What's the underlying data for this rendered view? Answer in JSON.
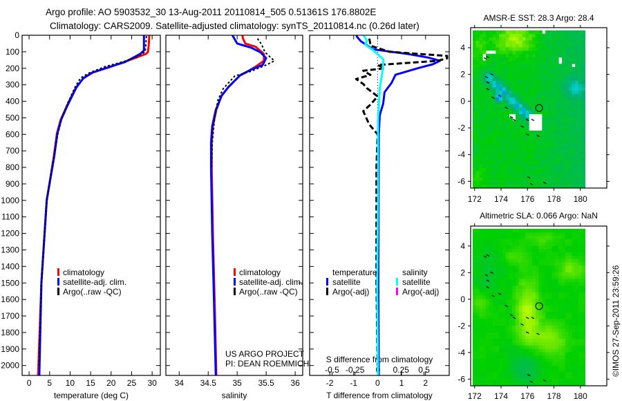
{
  "header": {
    "line1": "Argo profile: AO 5903532_30 13-Aug-2011 20110814_505 0.51361S 176.8802E",
    "line2": "Climatology: CARS2009. Satellite-adjusted climatology: synTS_20110814.nc (0.26d later)"
  },
  "annotation": {
    "project": "US ARGO PROJECT",
    "pi": "PI: DEAN ROEMMICH"
  },
  "timestamp": "©IMOS 27-Sep-2011 23:59:26",
  "colors": {
    "climatology": "#ff0000",
    "satellite": "#0000ff",
    "argo": "#000000",
    "salinity_satellite": "#00ffff",
    "salinity_argo": "#ff00ff"
  },
  "chart_data": [
    {
      "type": "line",
      "id": "temperature",
      "xlabel": "temperature (deg C)",
      "xlim": [
        -1.7,
        32
      ],
      "ylim": [
        0,
        2060
      ],
      "xticks": [
        0,
        5,
        10,
        15,
        20,
        25,
        30
      ],
      "xtick_labels": [
        "0",
        "5",
        "10",
        "15",
        "20",
        "25",
        "30"
      ],
      "yticks": [
        0,
        100,
        200,
        300,
        400,
        500,
        600,
        700,
        800,
        900,
        1000,
        1100,
        1200,
        1300,
        1400,
        1500,
        1600,
        1700,
        1800,
        1900,
        2000
      ],
      "ytick_labels": [
        "0",
        "100",
        "200",
        "300",
        "400",
        "500",
        "600",
        "700",
        "800",
        "900",
        "1000",
        "1100",
        "1200",
        "1300",
        "1400",
        "1500",
        "1600",
        "1700",
        "1800",
        "1900",
        "2000"
      ],
      "legend": [
        {
          "label": "climatology",
          "color": "#ff0000"
        },
        {
          "label": "satellite-adj. clim.",
          "color": "#0000ff"
        },
        {
          "label": "Argo(..raw -QC)",
          "color": "#000000"
        }
      ],
      "series": [
        {
          "name": "climatology",
          "color": "#ff0000",
          "style": "solid",
          "depth": [
            0,
            50,
            100,
            113,
            150,
            190,
            226,
            260,
            318,
            428,
            512,
            595,
            738,
            1000,
            1500,
            2060
          ],
          "values": [
            29.3,
            29.2,
            29.0,
            28.5,
            24.5,
            20.0,
            15.5,
            13.3,
            11.4,
            9.2,
            7.7,
            6.8,
            6.0,
            4.3,
            3.0,
            2.2
          ]
        },
        {
          "name": "satellite-adj. clim.",
          "color": "#0000ff",
          "style": "solid",
          "depth": [
            0,
            50,
            92,
            113,
            163,
            193,
            226,
            260,
            318,
            428,
            512,
            595,
            738,
            1000,
            1500,
            2060
          ],
          "values": [
            28.0,
            28.0,
            28.0,
            27.1,
            23.3,
            19.4,
            15.4,
            13.2,
            11.5,
            9.3,
            7.8,
            6.9,
            6.1,
            4.3,
            3.0,
            2.5
          ]
        },
        {
          "name": "Argo(..raw -QC)",
          "color": "#000000",
          "style": "dotted",
          "depth": [
            5,
            50,
            100,
            130,
            160,
            190,
            230,
            260,
            310,
            400,
            500,
            600,
            700,
            1000,
            1500,
            2000
          ],
          "values": [
            28.6,
            28.5,
            28.3,
            26.5,
            23.0,
            18.5,
            14.5,
            12.5,
            11.3,
            9.6,
            8.0,
            7.0,
            6.3,
            4.3,
            3.0,
            2.4
          ]
        }
      ]
    },
    {
      "type": "line",
      "id": "salinity",
      "xlabel": "salinity",
      "xlim": [
        33.77,
        36.13
      ],
      "ylim": [
        0,
        2060
      ],
      "xticks": [
        34,
        34.5,
        35,
        35.5,
        36
      ],
      "xtick_labels": [
        "34",
        "34.5",
        "35",
        "35.5",
        "36"
      ],
      "legend": [
        {
          "label": "climatology",
          "color": "#ff0000"
        },
        {
          "label": "satellite-adj. clim.",
          "color": "#0000ff"
        },
        {
          "label": "Argo(..raw -QC)",
          "color": "#000000"
        }
      ],
      "series": [
        {
          "name": "climatology",
          "color": "#ff0000",
          "style": "solid",
          "depth": [
            0,
            20,
            50,
            70,
            113,
            155,
            190,
            215,
            243,
            313,
            367,
            452,
            550,
            648,
            800,
            1200,
            1600,
            2060
          ],
          "values": [
            35.09,
            35.1,
            35.14,
            35.32,
            35.46,
            35.46,
            35.32,
            35.2,
            35.05,
            34.85,
            34.73,
            34.64,
            34.58,
            34.56,
            34.56,
            34.58,
            34.61,
            34.64
          ]
        },
        {
          "name": "satellite-adj. clim.",
          "color": "#0000ff",
          "style": "solid",
          "depth": [
            0,
            8,
            50,
            75,
            103,
            138,
            180,
            208,
            243,
            313,
            367,
            452,
            550,
            648,
            800,
            1200,
            1600,
            2060
          ],
          "values": [
            34.92,
            34.93,
            35.0,
            35.24,
            35.4,
            35.5,
            35.44,
            35.24,
            35.05,
            34.85,
            34.73,
            34.63,
            34.57,
            34.55,
            34.55,
            34.57,
            34.6,
            34.63
          ]
        },
        {
          "name": "Argo(..raw -QC)",
          "color": "#000000",
          "style": "dotted",
          "depth": [
            20,
            55,
            103,
            155,
            177,
            218,
            246,
            323,
            390,
            502,
            650,
            800
          ],
          "values": [
            35.35,
            35.42,
            35.48,
            35.64,
            35.52,
            35.24,
            34.96,
            34.76,
            34.67,
            34.61,
            34.57,
            34.56
          ]
        }
      ]
    },
    {
      "type": "line",
      "id": "difference",
      "xlabel": "T difference from climatology",
      "x2label": "S difference from climatology",
      "xlim": [
        -2.84,
        2.99
      ],
      "x2lim": [
        -0.744,
        0.774
      ],
      "ylim": [
        0,
        2060
      ],
      "xticks": [
        -2,
        -1,
        0,
        1,
        2
      ],
      "xtick_labels": [
        "-2",
        "-1",
        "0",
        "1",
        "2"
      ],
      "x2ticks": [
        -0.5,
        -0.25,
        0,
        0.25,
        0.5
      ],
      "x2tick_labels": [
        "-0.5",
        "-0.25",
        "0",
        "0.25",
        "0.5"
      ],
      "legend_temperature_title": "temperature",
      "legend_salinity_title": "salinity",
      "legend": [
        {
          "label": "satellite",
          "color": "#0000ff",
          "group": "temperature"
        },
        {
          "label": "Argo(-adj)",
          "color": "#000000",
          "group": "temperature"
        },
        {
          "label": "satellite",
          "color": "#00ffff",
          "group": "salinity"
        },
        {
          "label": "Argo(-adj)",
          "color": "#ff00ff",
          "group": "salinity"
        }
      ],
      "series": [
        {
          "name": "T satellite",
          "axis": "x",
          "color": "#0000ff",
          "style": "solid",
          "depth": [
            0,
            8,
            36,
            85,
            113,
            135,
            155,
            176,
            197,
            239,
            289,
            345,
            415,
            484,
            600,
            1000,
            1500,
            2060
          ],
          "values": [
            -0.87,
            -0.87,
            -0.7,
            -0.2,
            1.25,
            2.1,
            2.6,
            2.3,
            1.74,
            0.75,
            0.58,
            0.29,
            0.23,
            0.09,
            0.05,
            0.04,
            0.03,
            0.05
          ]
        },
        {
          "name": "T Argo(-adj)",
          "axis": "x",
          "color": "#000000",
          "style": "dashed",
          "depth": [
            20,
            64,
            100,
            125,
            140,
            155,
            165,
            180,
            200,
            215,
            240,
            265,
            295,
            320,
            370,
            420,
            460,
            540,
            600,
            800,
            1000,
            1500,
            2000
          ],
          "values": [
            -0.35,
            -0.29,
            0.5,
            2.9,
            2.9,
            2.5,
            1.5,
            0.0,
            0.3,
            -0.6,
            -0.3,
            -0.9,
            -0.6,
            -0.45,
            0.0,
            -0.3,
            -0.6,
            -0.35,
            0.0,
            -0.05,
            -0.05,
            -0.05,
            0.0
          ]
        },
        {
          "name": "S satellite",
          "axis": "x2",
          "color": "#00ffff",
          "style": "solid",
          "depth": [
            0,
            8,
            30,
            57,
            92,
            148,
            232,
            316,
            512,
            1000,
            1500,
            2060
          ],
          "values": [
            -0.15,
            -0.15,
            -0.12,
            -0.14,
            -0.05,
            0.06,
            0.045,
            0.02,
            0.0,
            0.0,
            -0.01,
            0.0
          ]
        }
      ]
    },
    {
      "type": "heatmap",
      "id": "sst-map",
      "title": "AMSR-E SST: 28.3 Argo: 28.4",
      "xlim": [
        171.7,
        182
      ],
      "ylim": [
        -6.5,
        5.5
      ],
      "xticks": [
        172,
        174,
        176,
        178,
        180
      ],
      "xtick_labels": [
        "172",
        "174",
        "176",
        "178",
        "180"
      ],
      "yticks": [
        4,
        2,
        0,
        -2,
        -4,
        -6
      ],
      "ytick_labels": [
        "4",
        "2",
        "0",
        "-2",
        "-4",
        "-6"
      ],
      "profile_location": [
        176.88,
        -0.51
      ]
    },
    {
      "type": "heatmap",
      "id": "sla-map",
      "title": "Altimetric SLA: 0.066 Argo: NaN",
      "xlim": [
        171.7,
        182
      ],
      "ylim": [
        -6.5,
        5.5
      ],
      "xticks": [
        172,
        174,
        176,
        178,
        180
      ],
      "xtick_labels": [
        "172",
        "174",
        "176",
        "178",
        "180"
      ],
      "yticks": [
        4,
        2,
        0,
        -2,
        -4,
        -6
      ],
      "ytick_labels": [
        "4",
        "2",
        "0",
        "-2",
        "-4",
        "-6"
      ],
      "profile_location": [
        176.88,
        -0.51
      ]
    }
  ],
  "island_points": [
    [
      172.8,
      3.2
    ],
    [
      173.0,
      3.3
    ],
    [
      173.3,
      2.0
    ],
    [
      172.9,
      1.8
    ],
    [
      173.0,
      1.4
    ],
    [
      173.0,
      0.9
    ],
    [
      173.4,
      0.25
    ],
    [
      173.9,
      0.4
    ],
    [
      174.4,
      -0.5
    ],
    [
      174.8,
      -1.2
    ],
    [
      175.0,
      -1.4
    ],
    [
      175.6,
      -1.9
    ],
    [
      176.0,
      -1.4
    ],
    [
      176.4,
      -1.4
    ],
    [
      176.0,
      -2.5
    ],
    [
      176.8,
      -2.6
    ],
    [
      176.1,
      -5.7
    ],
    [
      176.3,
      -6.2
    ],
    [
      177.3,
      -6.1
    ]
  ]
}
